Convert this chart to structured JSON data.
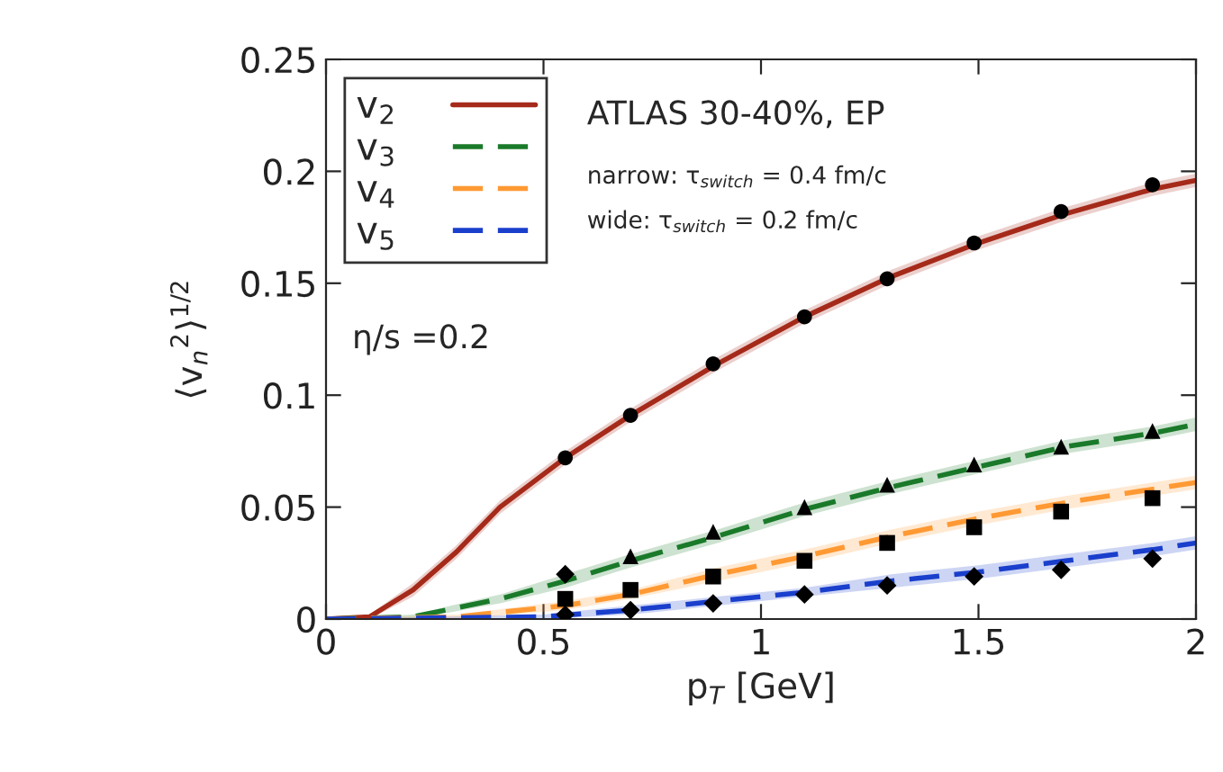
{
  "chart_data": {
    "type": "line",
    "xlabel": "p$_{T}$ [GeV]",
    "ylabel": "⟨v$_{n}$$^{2}$⟩$^{1/2}$",
    "xlim": [
      0,
      2
    ],
    "ylim": [
      0,
      0.25
    ],
    "xticks": [
      0,
      0.5,
      1,
      1.5,
      2
    ],
    "yticks": [
      0,
      0.05,
      0.1,
      0.15,
      0.2,
      0.25
    ],
    "grid": false,
    "legend": "top left",
    "annotations": [
      "ATLAS 30-40%, EP",
      "narrow: τ$_{switch}$ = 0.4 fm/c",
      "wide: τ$_{switch}$ = 0.2 fm/c",
      "η/s =0.2"
    ],
    "series": [
      {
        "name": "v$_{2}$",
        "color": "#a52a1a",
        "line_style": "solid",
        "x": [
          0,
          0.1,
          0.2,
          0.3,
          0.4,
          0.55,
          0.7,
          0.9,
          1.1,
          1.3,
          1.5,
          1.7,
          1.9,
          2.0
        ],
        "values": [
          0,
          0.001,
          0.013,
          0.03,
          0.05,
          0.072,
          0.091,
          0.114,
          0.135,
          0.153,
          0.168,
          0.181,
          0.192,
          0.196
        ],
        "lower": [
          0,
          0,
          0.01,
          0.027,
          0.047,
          0.069,
          0.088,
          0.111,
          0.132,
          0.15,
          0.165,
          0.178,
          0.189,
          0.193
        ],
        "upper": [
          0,
          0.002,
          0.016,
          0.033,
          0.053,
          0.075,
          0.094,
          0.117,
          0.138,
          0.156,
          0.171,
          0.184,
          0.195,
          0.199
        ]
      },
      {
        "name": "v$_{3}$",
        "color": "#1a7a2a",
        "line_style": "dashed",
        "x": [
          0,
          0.2,
          0.4,
          0.55,
          0.7,
          0.9,
          1.1,
          1.3,
          1.5,
          1.7,
          1.9,
          2.0
        ],
        "values": [
          0,
          0.001,
          0.009,
          0.017,
          0.026,
          0.037,
          0.049,
          0.059,
          0.068,
          0.077,
          0.083,
          0.087
        ],
        "lower": [
          0,
          0,
          0.007,
          0.014,
          0.023,
          0.034,
          0.046,
          0.056,
          0.065,
          0.074,
          0.08,
          0.084
        ],
        "upper": [
          0,
          0.002,
          0.011,
          0.02,
          0.029,
          0.04,
          0.052,
          0.062,
          0.071,
          0.08,
          0.086,
          0.09
        ]
      },
      {
        "name": "v$_{4}$",
        "color": "#ff9933",
        "line_style": "dashed",
        "x": [
          0,
          0.3,
          0.55,
          0.7,
          0.9,
          1.1,
          1.3,
          1.5,
          1.7,
          1.9,
          2.0
        ],
        "values": [
          0,
          0.001,
          0.006,
          0.011,
          0.02,
          0.028,
          0.037,
          0.045,
          0.052,
          0.058,
          0.061
        ],
        "lower": [
          0,
          0,
          0.004,
          0.009,
          0.017,
          0.025,
          0.034,
          0.042,
          0.049,
          0.055,
          0.058
        ],
        "upper": [
          0,
          0.002,
          0.008,
          0.013,
          0.023,
          0.031,
          0.04,
          0.048,
          0.055,
          0.061,
          0.064
        ]
      },
      {
        "name": "v$_{5}$",
        "color": "#1a3fcc",
        "line_style": "dashed",
        "x": [
          0,
          0.5,
          0.7,
          0.9,
          1.1,
          1.3,
          1.5,
          1.7,
          1.9,
          2.0
        ],
        "values": [
          0,
          0.001,
          0.004,
          0.008,
          0.012,
          0.017,
          0.021,
          0.026,
          0.031,
          0.034
        ],
        "lower": [
          0,
          0,
          0.002,
          0.006,
          0.01,
          0.014,
          0.018,
          0.023,
          0.028,
          0.031
        ],
        "upper": [
          0,
          0.002,
          0.006,
          0.01,
          0.014,
          0.02,
          0.024,
          0.029,
          0.034,
          0.037
        ]
      },
      {
        "type": "scatter",
        "marker": "circle",
        "color": "#000000",
        "x": [
          0.55,
          0.7,
          0.89,
          1.1,
          1.29,
          1.49,
          1.69,
          1.9
        ],
        "values": [
          0.072,
          0.091,
          0.114,
          0.135,
          0.152,
          0.168,
          0.182,
          0.194
        ]
      },
      {
        "type": "scatter",
        "marker": "triangle",
        "color": "#000000",
        "x": [
          0.7,
          0.89,
          1.1,
          1.29,
          1.49,
          1.69,
          1.9
        ],
        "values": [
          0.028,
          0.039,
          0.05,
          0.06,
          0.069,
          0.077,
          0.084
        ]
      },
      {
        "type": "scatter",
        "marker": "square",
        "color": "#000000",
        "x": [
          0.55,
          0.7,
          0.89,
          1.1,
          1.29,
          1.49,
          1.69,
          1.9
        ],
        "values": [
          0.009,
          0.013,
          0.019,
          0.026,
          0.034,
          0.041,
          0.048,
          0.054
        ]
      },
      {
        "type": "scatter",
        "marker": "diamond",
        "color": "#000000",
        "x": [
          0.55,
          0.55,
          0.7,
          0.89,
          1.1,
          1.29,
          1.49,
          1.69,
          1.9
        ],
        "values": [
          0.02,
          0.002,
          0.004,
          0.007,
          0.011,
          0.015,
          0.019,
          0.022,
          0.027
        ]
      }
    ]
  }
}
